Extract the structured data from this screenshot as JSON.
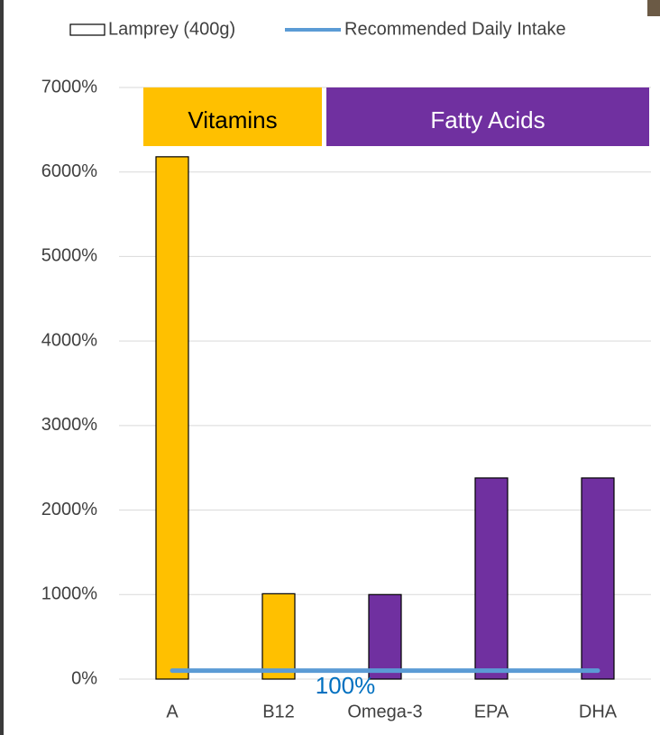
{
  "chart_data": {
    "type": "bar",
    "categories": [
      "A",
      "B12",
      "Omega-3",
      "EPA",
      "DHA"
    ],
    "series": [
      {
        "name": "Lamprey (400g)",
        "colors": [
          "#ffc000",
          "#ffc000",
          "#7030a0",
          "#7030a0",
          "#7030a0"
        ],
        "values": [
          6180,
          1010,
          1000,
          2380,
          2380
        ]
      }
    ],
    "reference_line": {
      "name": "Recommended Daily Intake",
      "color": "#5b9bd5",
      "value": 100,
      "value_label": "100%"
    },
    "groups": [
      {
        "label": "Vitamins",
        "color": "#ffc000"
      },
      {
        "label": "Fatty Acids",
        "color": "#7030a0"
      }
    ],
    "ylim": [
      0,
      7000
    ],
    "yticks": [
      {
        "value": 0,
        "label": "0%"
      },
      {
        "value": 1000,
        "label": "1000%"
      },
      {
        "value": 2000,
        "label": "2000%"
      },
      {
        "value": 3000,
        "label": "3000%"
      },
      {
        "value": 4000,
        "label": "4000%"
      },
      {
        "value": 5000,
        "label": "5000%"
      },
      {
        "value": 6000,
        "label": "6000%"
      },
      {
        "value": 7000,
        "label": "7000%"
      }
    ],
    "grid": true
  }
}
